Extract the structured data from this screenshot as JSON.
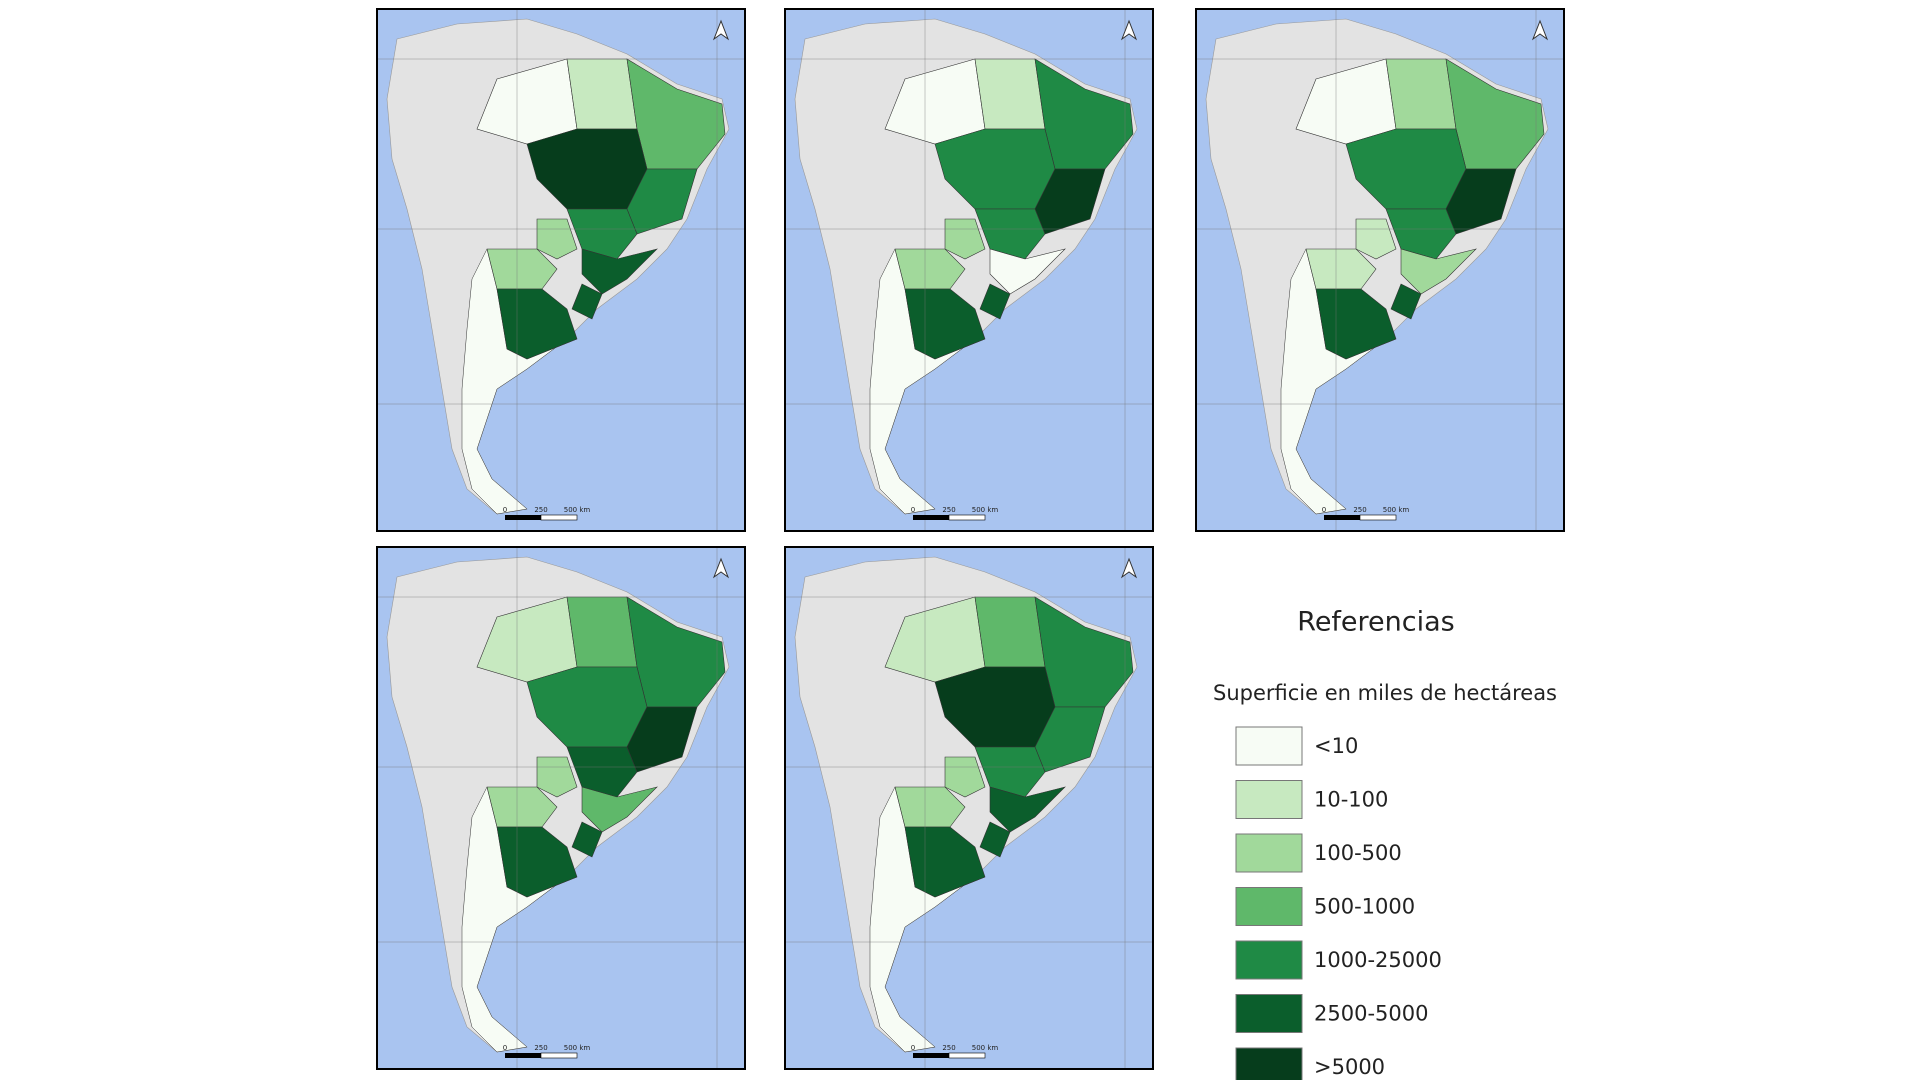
{
  "legend": {
    "title": "Referencias",
    "subtitle": "Superficie en miles de hectáreas",
    "items": [
      {
        "label": "<10",
        "color": "#f7fcf5"
      },
      {
        "label": "10-100",
        "color": "#c7e9c0"
      },
      {
        "label": "100-500",
        "color": "#a1d99b"
      },
      {
        "label": "500-1000",
        "color": "#5fb86a"
      },
      {
        "label": "1000-25000",
        "color": "#1f8a45"
      },
      {
        "label": "2500-5000",
        "color": "#0b5e2c"
      },
      {
        "label": ">5000",
        "color": "#063d1c"
      }
    ]
  },
  "scale_bar": [
    "0",
    "250",
    "500 km"
  ]
}
